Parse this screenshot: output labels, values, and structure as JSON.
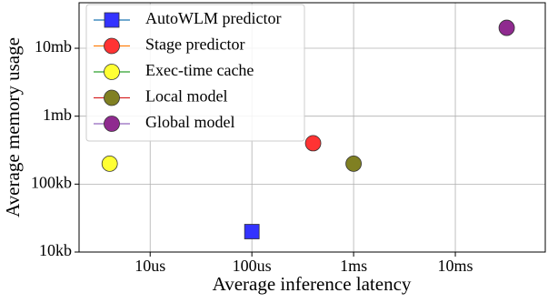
{
  "chart_data": {
    "type": "scatter",
    "xlabel": "Average inference latency",
    "ylabel": "Average memory usage",
    "xscale": "log",
    "yscale": "log",
    "xlim": [
      2,
      76600
    ],
    "ylim": [
      10,
      46800
    ],
    "xticks": [
      {
        "value": 10,
        "label": "10us"
      },
      {
        "value": 100,
        "label": "100us"
      },
      {
        "value": 1000,
        "label": "1ms"
      },
      {
        "value": 10000,
        "label": "10ms"
      }
    ],
    "yticks": [
      {
        "value": 10,
        "label": "10kb"
      },
      {
        "value": 100,
        "label": "100kb"
      },
      {
        "value": 1000,
        "label": "1mb"
      },
      {
        "value": 10000,
        "label": "10mb"
      }
    ],
    "grid": true,
    "legend": "upper left",
    "series": [
      {
        "name": "AutoWLM predictor",
        "color": "#3333ff",
        "line_color": "#1f77b4",
        "marker": "square",
        "x": [
          100
        ],
        "values": [
          20
        ]
      },
      {
        "name": "Stage predictor",
        "color": "#ff3333",
        "line_color": "#ff7f0e",
        "marker": "circle",
        "x": [
          400
        ],
        "values": [
          400
        ]
      },
      {
        "name": "Exec-time cache",
        "color": "#ffff33",
        "line_color": "#2ca02c",
        "marker": "circle",
        "x": [
          4
        ],
        "values": [
          200
        ]
      },
      {
        "name": "Local model",
        "color": "#808022",
        "line_color": "#d62728",
        "marker": "circle",
        "x": [
          1000
        ],
        "values": [
          200
        ]
      },
      {
        "name": "Global model",
        "color": "#8f2a8f",
        "line_color": "#9467bd",
        "marker": "circle",
        "x": [
          32000
        ],
        "values": [
          20000
        ]
      }
    ]
  }
}
